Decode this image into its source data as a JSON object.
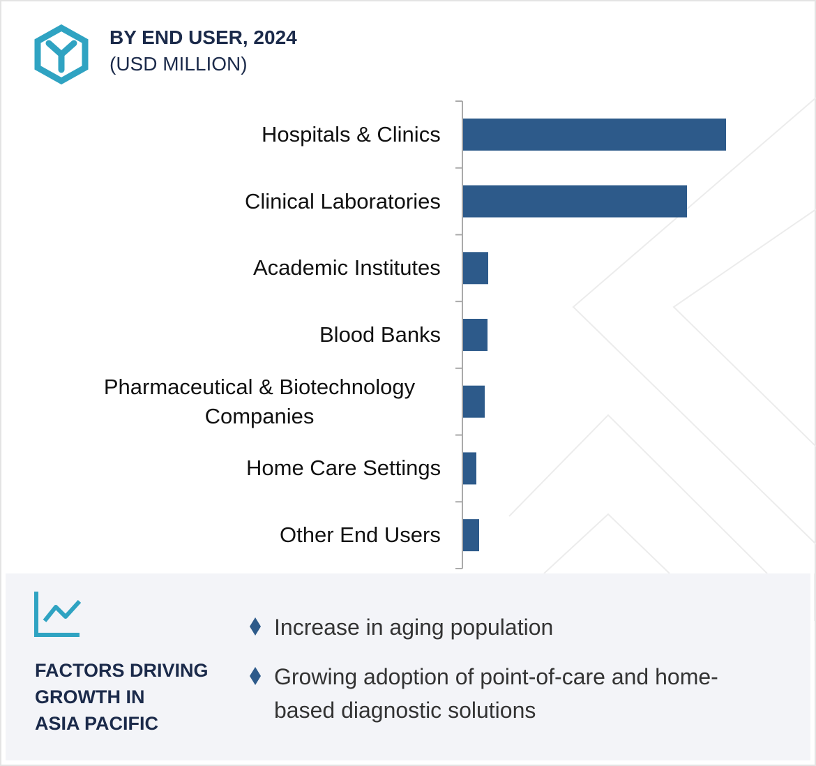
{
  "chart_data": {
    "type": "bar",
    "orientation": "horizontal",
    "title": "BY END USER, 2024",
    "subtitle": "(USD MILLION)",
    "categories": [
      "Hospitals & Clinics",
      "Clinical Laboratories",
      "Academic Institutes",
      "Blood Banks",
      "Pharmaceutical & Biotechnology Companies",
      "Home Care Settings",
      "Other End Users"
    ],
    "values": [
      377,
      321,
      36,
      35,
      31,
      19,
      23
    ],
    "color": "#2d5a8a"
  },
  "factors": {
    "heading_lines": [
      "FACTORS DRIVING",
      "GROWTH IN",
      "ASIA PACIFIC"
    ],
    "items": [
      "Increase in aging population",
      "Growing adoption of point-of-care and home-based diagnostic solutions"
    ]
  }
}
